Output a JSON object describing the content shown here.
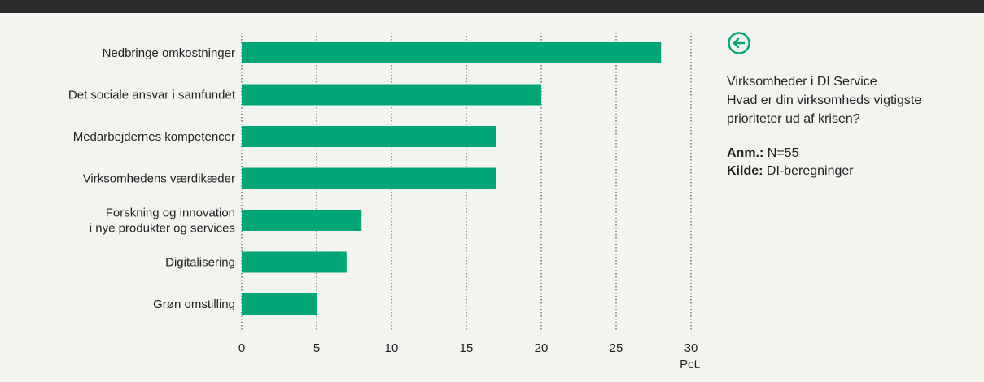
{
  "chart_data": {
    "type": "bar",
    "orientation": "horizontal",
    "categories": [
      "Nedbringe omkostninger",
      "Det sociale ansvar i samfundet",
      "Medarbejdernes kompetencer",
      "Virksomhedens værdikæder",
      "Forskning og innovation\ni nye produkter og services",
      "Digitalisering",
      "Grøn omstilling"
    ],
    "values": [
      28,
      20,
      17,
      17,
      8,
      7,
      5
    ],
    "xlim": [
      0,
      30
    ],
    "xticks": [
      0,
      5,
      10,
      15,
      20,
      25,
      30
    ],
    "xlabel": "Pct.",
    "grid": "vertical dotted",
    "bar_color": "#00a676"
  },
  "panel": {
    "icon": "back-arrow-circle-icon",
    "accent_color": "#00a676",
    "title": "Virksomheder i DI Service",
    "question": "Hvad er din virksomheds vigtigste prioriteter ud af krisen?",
    "note_label": "Anm.:",
    "note_value": "N=55",
    "source_label": "Kilde:",
    "source_value": "DI-beregninger"
  }
}
